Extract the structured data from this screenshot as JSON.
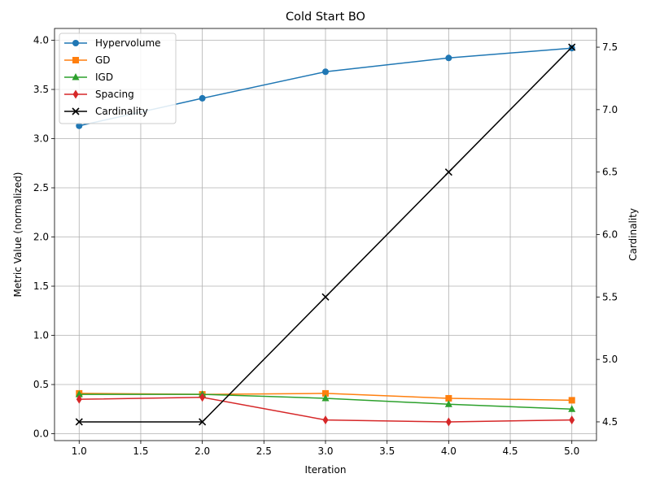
{
  "chart_data": {
    "type": "line",
    "title": "Cold Start BO",
    "xlabel": "Iteration",
    "ylabel": "Metric Value (normalized)",
    "y2label": "Cardinality",
    "x": [
      1.0,
      2.0,
      3.0,
      4.0,
      5.0
    ],
    "xlim": [
      0.8,
      5.2
    ],
    "ylim": [
      -0.07,
      4.12
    ],
    "y2lim": [
      4.35,
      7.65
    ],
    "xticks": [
      "1.0",
      "1.5",
      "2.0",
      "2.5",
      "3.0",
      "3.5",
      "4.0",
      "4.5",
      "5.0"
    ],
    "yticks": [
      "0.0",
      "0.5",
      "1.0",
      "1.5",
      "2.0",
      "2.5",
      "3.0",
      "3.5",
      "4.0"
    ],
    "y2ticks": [
      "4.5",
      "5.0",
      "5.5",
      "6.0",
      "6.5",
      "7.0",
      "7.5"
    ],
    "grid": true,
    "legend_position": "upper-left",
    "series": [
      {
        "name": "Hypervolume",
        "axis": "left",
        "color": "#1f77b4",
        "marker": "circle",
        "values": [
          3.13,
          3.41,
          3.68,
          3.82,
          3.92
        ]
      },
      {
        "name": "GD",
        "axis": "left",
        "color": "#ff7f0e",
        "marker": "square",
        "values": [
          0.41,
          0.4,
          0.41,
          0.36,
          0.34
        ]
      },
      {
        "name": "IGD",
        "axis": "left",
        "color": "#2ca02c",
        "marker": "triangle",
        "values": [
          0.4,
          0.4,
          0.36,
          0.3,
          0.25
        ]
      },
      {
        "name": "Spacing",
        "axis": "left",
        "color": "#d62728",
        "marker": "diamond",
        "values": [
          0.35,
          0.37,
          0.14,
          0.12,
          0.14
        ]
      },
      {
        "name": "Cardinality",
        "axis": "right",
        "color": "#000000",
        "marker": "x",
        "values": [
          4.5,
          4.5,
          5.5,
          6.5,
          7.5
        ]
      }
    ]
  }
}
